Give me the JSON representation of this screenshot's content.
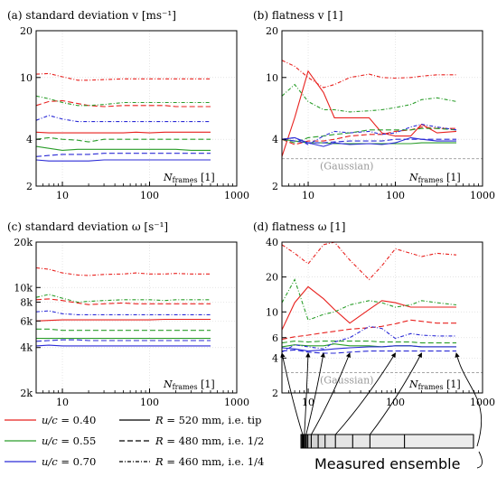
{
  "colors": {
    "u040": "#e8211e",
    "u055": "#2a9d2a",
    "u070": "#2b2bd6",
    "gauss": "#9a9a9a",
    "frame": "#000000"
  },
  "chart_data": [
    {
      "id": "a",
      "type": "line",
      "title": "(a) standard deviation v [ms⁻¹]",
      "xlabel": "N_frames [1]",
      "xlabel_main": "N",
      "xlabel_sub": "frames",
      "xlabel_unit": " [1]",
      "xscale": "log",
      "yscale": "log",
      "xlim": [
        5,
        1000
      ],
      "ylim": [
        2,
        20
      ],
      "xticks": [
        10,
        100,
        1000
      ],
      "xticklabels": [
        "10",
        "100",
        "1000"
      ],
      "yticks": [
        2,
        4,
        10,
        20
      ],
      "yticklabels": [
        "2",
        "4",
        "10",
        "20"
      ],
      "grid": true,
      "x": [
        5,
        7,
        10,
        15,
        20,
        30,
        50,
        70,
        100,
        150,
        200,
        300,
        500
      ],
      "series": [
        {
          "name": "u/c = 0.40, R = 520 mm",
          "color": "u040",
          "dash": "solid",
          "values": [
            4.45,
            4.4,
            4.4,
            4.4,
            4.4,
            4.4,
            4.4,
            4.45,
            4.4,
            4.45,
            4.45,
            4.45,
            4.45
          ]
        },
        {
          "name": "u/c = 0.40, R = 480 mm",
          "color": "u040",
          "dash": "dashed",
          "values": [
            6.6,
            7.0,
            7.1,
            6.8,
            6.6,
            6.5,
            6.6,
            6.6,
            6.6,
            6.6,
            6.5,
            6.5,
            6.5
          ]
        },
        {
          "name": "u/c = 0.40, R = 460 mm",
          "color": "u040",
          "dash": "dashdot",
          "values": [
            10.5,
            10.6,
            10.1,
            9.6,
            9.6,
            9.7,
            9.8,
            9.8,
            9.8,
            9.8,
            9.8,
            9.8,
            9.8
          ]
        },
        {
          "name": "u/c = 0.55, R = 520 mm",
          "color": "u055",
          "dash": "solid",
          "values": [
            3.6,
            3.5,
            3.4,
            3.45,
            3.45,
            3.45,
            3.45,
            3.45,
            3.45,
            3.45,
            3.45,
            3.4,
            3.4
          ]
        },
        {
          "name": "u/c = 0.55, R = 480 mm",
          "color": "u055",
          "dash": "dashed",
          "values": [
            4.0,
            4.1,
            4.0,
            3.95,
            3.85,
            4.0,
            4.0,
            4.0,
            4.0,
            4.0,
            4.0,
            4.0,
            4.0
          ]
        },
        {
          "name": "u/c = 0.55, R = 460 mm",
          "color": "u055",
          "dash": "dashdot",
          "values": [
            7.6,
            7.3,
            6.9,
            6.6,
            6.6,
            6.7,
            6.9,
            6.9,
            6.9,
            6.9,
            6.9,
            6.9,
            6.9
          ]
        },
        {
          "name": "u/c = 0.70, R = 520 mm",
          "color": "u070",
          "dash": "solid",
          "values": [
            2.95,
            2.9,
            2.9,
            2.9,
            2.9,
            2.95,
            2.95,
            2.95,
            2.95,
            2.95,
            2.95,
            2.95,
            2.95
          ]
        },
        {
          "name": "u/c = 0.70, R = 480 mm",
          "color": "u070",
          "dash": "dashed",
          "values": [
            3.1,
            3.15,
            3.2,
            3.2,
            3.2,
            3.25,
            3.25,
            3.25,
            3.25,
            3.25,
            3.25,
            3.25,
            3.25
          ]
        },
        {
          "name": "u/c = 0.70, R = 460 mm",
          "color": "u070",
          "dash": "dashdot",
          "values": [
            5.3,
            5.7,
            5.4,
            5.2,
            5.2,
            5.2,
            5.2,
            5.2,
            5.2,
            5.2,
            5.2,
            5.2,
            5.2
          ]
        }
      ]
    },
    {
      "id": "b",
      "type": "line",
      "title": "(b) flatness v [1]",
      "xlabel": "N_frames [1]",
      "xlabel_main": "N",
      "xlabel_sub": "frames",
      "xlabel_unit": " [1]",
      "xscale": "log",
      "yscale": "log",
      "xlim": [
        5,
        1000
      ],
      "ylim": [
        2,
        20
      ],
      "xticks": [
        10,
        100,
        1000
      ],
      "xticklabels": [
        "10",
        "100",
        "1000"
      ],
      "yticks": [
        2,
        4,
        10,
        20
      ],
      "yticklabels": [
        "2",
        "4",
        "10",
        "20"
      ],
      "grid": true,
      "reference": {
        "label": "(Gaussian)",
        "y": 3.0
      },
      "x": [
        5,
        7,
        10,
        15,
        20,
        30,
        50,
        70,
        100,
        150,
        200,
        300,
        500
      ],
      "series": [
        {
          "name": "u/c = 0.40, R = 520 mm",
          "color": "u040",
          "dash": "solid",
          "values": [
            3.1,
            5.5,
            11.0,
            8.0,
            5.5,
            5.5,
            5.5,
            4.4,
            4.2,
            4.2,
            5.0,
            4.4,
            4.5
          ]
        },
        {
          "name": "u/c = 0.40, R = 480 mm",
          "color": "u040",
          "dash": "dashed",
          "values": [
            4.0,
            3.7,
            3.9,
            3.9,
            4.0,
            4.2,
            4.3,
            4.3,
            4.5,
            4.6,
            4.8,
            4.7,
            4.7
          ]
        },
        {
          "name": "u/c = 0.40, R = 460 mm",
          "color": "u040",
          "dash": "dashdot",
          "values": [
            12.9,
            11.8,
            10.0,
            8.6,
            9.0,
            10.0,
            10.5,
            10.0,
            9.9,
            10.0,
            10.2,
            10.4,
            10.4
          ]
        },
        {
          "name": "u/c = 0.55, R = 520 mm",
          "color": "u055",
          "dash": "solid",
          "values": [
            4.0,
            3.9,
            3.8,
            3.8,
            3.75,
            3.75,
            3.75,
            3.75,
            3.75,
            3.75,
            3.8,
            3.8,
            3.8
          ]
        },
        {
          "name": "u/c = 0.55, R = 480 mm",
          "color": "u055",
          "dash": "dashed",
          "values": [
            4.0,
            3.8,
            4.1,
            4.2,
            4.3,
            4.4,
            4.6,
            4.6,
            4.6,
            4.6,
            4.7,
            4.7,
            4.6
          ]
        },
        {
          "name": "u/c = 0.55, R = 460 mm",
          "color": "u055",
          "dash": "dashdot",
          "values": [
            7.6,
            9.0,
            7.0,
            6.2,
            6.2,
            6.0,
            6.1,
            6.2,
            6.4,
            6.7,
            7.2,
            7.4,
            7.0
          ]
        },
        {
          "name": "u/c = 0.70, R = 520 mm",
          "color": "u070",
          "dash": "solid",
          "values": [
            4.0,
            4.1,
            3.8,
            3.6,
            3.8,
            3.7,
            3.75,
            3.7,
            3.8,
            4.1,
            4.0,
            3.9,
            3.9
          ]
        },
        {
          "name": "u/c = 0.70, R = 480 mm",
          "color": "u070",
          "dash": "dashed",
          "values": [
            4.0,
            3.9,
            3.8,
            3.8,
            3.85,
            3.9,
            3.9,
            3.9,
            4.0,
            4.0,
            4.0,
            4.0,
            4.0
          ]
        },
        {
          "name": "u/c = 0.70, R = 460 mm",
          "color": "u070",
          "dash": "dashdot",
          "values": [
            4.0,
            4.1,
            3.7,
            4.2,
            4.5,
            4.4,
            4.5,
            4.3,
            4.4,
            4.8,
            5.0,
            4.8,
            4.6
          ]
        }
      ]
    },
    {
      "id": "c",
      "type": "line",
      "title": "(c) standard deviation ω [s⁻¹]",
      "xlabel": "N_frames [1]",
      "xlabel_main": "N",
      "xlabel_sub": "frames",
      "xlabel_unit": " [1]",
      "xscale": "log",
      "yscale": "log",
      "xlim": [
        5,
        1000
      ],
      "ylim": [
        2000,
        20000
      ],
      "xticks": [
        10,
        100,
        1000
      ],
      "xticklabels": [
        "10",
        "100",
        "1000"
      ],
      "yticks": [
        2000,
        4000,
        6000,
        8000,
        10000,
        20000
      ],
      "yticklabels": [
        "2k",
        "4k",
        "6k",
        "8k",
        "10k",
        "20k"
      ],
      "grid": true,
      "x": [
        5,
        7,
        10,
        15,
        20,
        30,
        50,
        70,
        100,
        150,
        200,
        300,
        500
      ],
      "series": [
        {
          "name": "u/c = 0.40, R = 520 mm",
          "color": "u040",
          "dash": "solid",
          "values": [
            6000,
            6050,
            6100,
            6100,
            6100,
            6100,
            6100,
            6100,
            6100,
            6150,
            6150,
            6150,
            6150
          ]
        },
        {
          "name": "u/c = 0.40, R = 480 mm",
          "color": "u040",
          "dash": "dashed",
          "values": [
            8300,
            8400,
            8200,
            7900,
            7700,
            7800,
            7900,
            7800,
            7800,
            7800,
            7800,
            7800,
            7800
          ]
        },
        {
          "name": "u/c = 0.40, R = 460 mm",
          "color": "u040",
          "dash": "dashdot",
          "values": [
            13500,
            13200,
            12500,
            12100,
            12000,
            12200,
            12300,
            12500,
            12300,
            12300,
            12400,
            12300,
            12300
          ]
        },
        {
          "name": "u/c = 0.55, R = 520 mm",
          "color": "u055",
          "dash": "solid",
          "values": [
            4600,
            4600,
            4600,
            4600,
            4600,
            4600,
            4600,
            4600,
            4600,
            4600,
            4600,
            4600,
            4600
          ]
        },
        {
          "name": "u/c = 0.55, R = 480 mm",
          "color": "u055",
          "dash": "dashed",
          "values": [
            5300,
            5300,
            5200,
            5200,
            5200,
            5200,
            5200,
            5200,
            5200,
            5200,
            5200,
            5200,
            5200
          ]
        },
        {
          "name": "u/c = 0.55, R = 460 mm",
          "color": "u055",
          "dash": "dashdot",
          "values": [
            8600,
            9000,
            8500,
            8000,
            8100,
            8200,
            8300,
            8300,
            8300,
            8200,
            8300,
            8300,
            8300
          ]
        },
        {
          "name": "u/c = 0.70, R = 520 mm",
          "color": "u070",
          "dash": "solid",
          "values": [
            4100,
            4150,
            4100,
            4100,
            4100,
            4100,
            4100,
            4100,
            4100,
            4100,
            4100,
            4100,
            4100
          ]
        },
        {
          "name": "u/c = 0.70, R = 480 mm",
          "color": "u070",
          "dash": "dashed",
          "values": [
            4400,
            4450,
            4500,
            4500,
            4450,
            4450,
            4450,
            4450,
            4450,
            4450,
            4450,
            4450,
            4450
          ]
        },
        {
          "name": "u/c = 0.70, R = 460 mm",
          "color": "u070",
          "dash": "dashdot",
          "values": [
            6900,
            7000,
            6700,
            6600,
            6600,
            6600,
            6600,
            6600,
            6600,
            6600,
            6600,
            6600,
            6600
          ]
        }
      ]
    },
    {
      "id": "d",
      "type": "line",
      "title": "(d) flatness ω [1]",
      "xlabel": "N_frames [1]",
      "xlabel_main": "N",
      "xlabel_sub": "frames",
      "xlabel_unit": " [1]",
      "xscale": "log",
      "yscale": "log",
      "xlim": [
        5,
        1000
      ],
      "ylim": [
        2,
        40
      ],
      "xticks": [
        10,
        100,
        1000
      ],
      "xticklabels": [
        "10",
        "100",
        "1000"
      ],
      "yticks": [
        2,
        4,
        6,
        10,
        20,
        40
      ],
      "yticklabels": [
        "2",
        "4",
        "6",
        "10",
        "20",
        "40"
      ],
      "grid": true,
      "reference": {
        "label": "(Gaussian)",
        "y": 3.0
      },
      "x": [
        5,
        7,
        10,
        15,
        20,
        30,
        50,
        70,
        100,
        150,
        200,
        300,
        500
      ],
      "series": [
        {
          "name": "u/c = 0.40, R = 520 mm",
          "color": "u040",
          "dash": "solid",
          "values": [
            7.0,
            12.0,
            16.5,
            13.0,
            10.5,
            8.0,
            10.5,
            12.5,
            12.0,
            11.0,
            11.0,
            11.0,
            11.0
          ]
        },
        {
          "name": "u/c = 0.40, R = 480 mm",
          "color": "u040",
          "dash": "dashed",
          "values": [
            5.8,
            6.1,
            6.3,
            6.6,
            6.8,
            7.1,
            7.3,
            7.5,
            7.9,
            8.5,
            8.3,
            8.0,
            8.0
          ]
        },
        {
          "name": "u/c = 0.40, R = 460 mm",
          "color": "u040",
          "dash": "dashdot",
          "values": [
            38.0,
            32.0,
            26.0,
            38.0,
            40.0,
            28.0,
            19.0,
            25.0,
            35.0,
            32.0,
            30.0,
            32.0,
            31.0
          ]
        },
        {
          "name": "u/c = 0.55, R = 520 mm",
          "color": "u055",
          "dash": "solid",
          "values": [
            5.0,
            5.2,
            5.1,
            5.1,
            5.3,
            5.1,
            5.1,
            5.0,
            5.1,
            5.1,
            5.0,
            5.0,
            5.0
          ]
        },
        {
          "name": "u/c = 0.55, R = 480 mm",
          "color": "u055",
          "dash": "dashed",
          "values": [
            5.4,
            5.6,
            5.5,
            5.6,
            5.6,
            5.6,
            5.6,
            5.5,
            5.5,
            5.5,
            5.4,
            5.4,
            5.4
          ]
        },
        {
          "name": "u/c = 0.55, R = 460 mm",
          "color": "u055",
          "dash": "dashdot",
          "values": [
            12.0,
            19.0,
            8.5,
            9.5,
            10.0,
            11.5,
            12.5,
            12.0,
            11.0,
            11.5,
            12.5,
            12.0,
            11.5
          ]
        },
        {
          "name": "u/c = 0.70, R = 520 mm",
          "color": "u070",
          "dash": "solid",
          "values": [
            4.9,
            4.8,
            4.6,
            4.7,
            4.8,
            4.9,
            5.0,
            5.0,
            5.1,
            5.1,
            5.0,
            5.0,
            5.0
          ]
        },
        {
          "name": "u/c = 0.70, R = 480 mm",
          "color": "u070",
          "dash": "dashed",
          "values": [
            4.6,
            4.7,
            4.5,
            4.4,
            4.4,
            4.5,
            4.6,
            4.6,
            4.6,
            4.6,
            4.6,
            4.6,
            4.6
          ]
        },
        {
          "name": "u/c = 0.70, R = 460 mm",
          "color": "u070",
          "dash": "dashdot",
          "values": [
            4.5,
            5.2,
            5.0,
            4.8,
            5.5,
            6.0,
            7.5,
            7.2,
            5.9,
            6.5,
            6.3,
            6.2,
            6.2
          ]
        }
      ]
    }
  ],
  "legend": {
    "colors": [
      {
        "label": "u/c = 0.40",
        "color": "u040"
      },
      {
        "label": "u/c = 0.55",
        "color": "u055"
      },
      {
        "label": "u/c = 0.70",
        "color": "u070"
      }
    ],
    "styles": [
      {
        "label": "R = 520 mm, i.e. tip",
        "dash": "solid"
      },
      {
        "label": "R = 480 mm, i.e. 1/2",
        "dash": "dashed"
      },
      {
        "label": "R = 460 mm, i.e. 1/4",
        "dash": "dashdot"
      }
    ]
  },
  "ensemble": {
    "label": "Measured ensemble",
    "segment_values": [
      5,
      7,
      10,
      15,
      20,
      30,
      50,
      70,
      100,
      150,
      200,
      300,
      500
    ]
  }
}
